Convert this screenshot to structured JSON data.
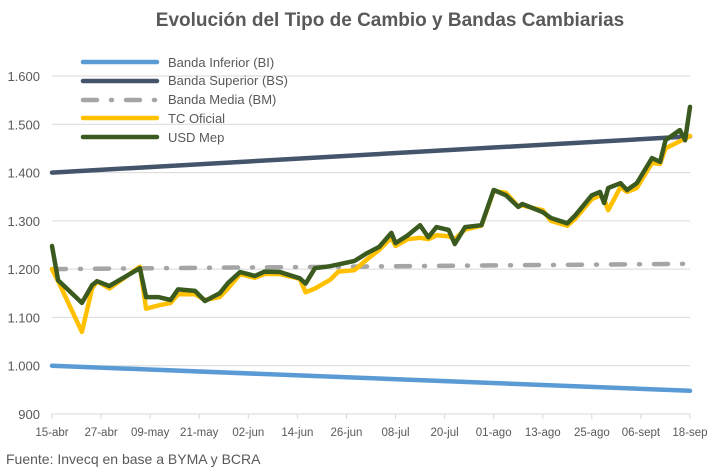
{
  "chart_data": {
    "type": "line",
    "title": "Evolución del Tipo de Cambio y Bandas Cambiarias",
    "xlabel": "",
    "ylabel": "",
    "x_unit": "days since 15-abr",
    "x_ticks": [
      0,
      12,
      24,
      36,
      48,
      60,
      72,
      84,
      96,
      108,
      120,
      132,
      144,
      156
    ],
    "x_tick_labels": [
      "15-abr",
      "27-abr",
      "09-may",
      "21-may",
      "02-jun",
      "14-jun",
      "26-jun",
      "08-jul",
      "20-jul",
      "01-ago",
      "13-ago",
      "25-ago",
      "06-sept",
      "18-sep"
    ],
    "xlim": [
      0,
      156
    ],
    "ylim": [
      900,
      1600
    ],
    "y_ticks": [
      900,
      1000,
      1100,
      1200,
      1300,
      1400,
      1500,
      1600
    ],
    "y_tick_labels": [
      "900",
      "1.000",
      "1.100",
      "1.200",
      "1.300",
      "1.400",
      "1.500",
      "1.600"
    ],
    "grid": true,
    "legend_position": "top-left",
    "series": [
      {
        "name": "Banda Inferior (BI)",
        "color": "#5b9bd5",
        "style": "solid",
        "points": [
          [
            0,
            1000
          ],
          [
            156,
            948
          ]
        ]
      },
      {
        "name": "Banda Superior (BS)",
        "color": "#44546a",
        "style": "solid",
        "points": [
          [
            0,
            1400
          ],
          [
            156,
            1475
          ]
        ]
      },
      {
        "name": "Banda Media (BM)",
        "color": "#a5a5a5",
        "style": "dashdot",
        "points": [
          [
            0,
            1200
          ],
          [
            156,
            1211
          ]
        ]
      },
      {
        "name": "TC Oficial",
        "color": "#ffc000",
        "style": "solid",
        "points": [
          [
            0,
            1200
          ],
          [
            1.5,
            1175
          ],
          [
            7.3,
            1070
          ],
          [
            9.8,
            1160
          ],
          [
            11,
            1175
          ],
          [
            14,
            1160
          ],
          [
            21.5,
            1205
          ],
          [
            23,
            1118
          ],
          [
            26,
            1125
          ],
          [
            29,
            1130
          ],
          [
            30.8,
            1148
          ],
          [
            35,
            1148
          ],
          [
            37.4,
            1136
          ],
          [
            41,
            1142
          ],
          [
            43,
            1160
          ],
          [
            46,
            1190
          ],
          [
            49.6,
            1182
          ],
          [
            52,
            1190
          ],
          [
            55.7,
            1190
          ],
          [
            60.6,
            1180
          ],
          [
            62,
            1152
          ],
          [
            64.3,
            1160
          ],
          [
            68,
            1178
          ],
          [
            70,
            1195
          ],
          [
            74,
            1198
          ],
          [
            77,
            1220
          ],
          [
            80,
            1240
          ],
          [
            83,
            1265
          ],
          [
            84,
            1248
          ],
          [
            87,
            1262
          ],
          [
            90,
            1265
          ],
          [
            92,
            1262
          ],
          [
            94,
            1270
          ],
          [
            97,
            1268
          ],
          [
            98.5,
            1262
          ],
          [
            101,
            1282
          ],
          [
            105,
            1290
          ],
          [
            108,
            1362
          ],
          [
            111,
            1358
          ],
          [
            114,
            1330
          ],
          [
            115,
            1332
          ],
          [
            120,
            1322
          ],
          [
            122,
            1300
          ],
          [
            126,
            1290
          ],
          [
            128,
            1305
          ],
          [
            132,
            1345
          ],
          [
            134,
            1352
          ],
          [
            135,
            1345
          ],
          [
            136,
            1322
          ],
          [
            139,
            1370
          ],
          [
            140.6,
            1360
          ],
          [
            143,
            1368
          ],
          [
            146.7,
            1420
          ],
          [
            148.7,
            1418
          ],
          [
            150,
            1450
          ],
          [
            153.5,
            1465
          ],
          [
            154.8,
            1470
          ],
          [
            156,
            1476
          ]
        ]
      },
      {
        "name": "USD Mep",
        "color": "#3b5a1f",
        "style": "solid",
        "points": [
          [
            0,
            1248
          ],
          [
            1.5,
            1177
          ],
          [
            7.3,
            1130
          ],
          [
            9.8,
            1167
          ],
          [
            11,
            1175
          ],
          [
            14,
            1165
          ],
          [
            21.5,
            1202
          ],
          [
            23,
            1142
          ],
          [
            26,
            1142
          ],
          [
            29,
            1136
          ],
          [
            30.8,
            1158
          ],
          [
            35,
            1155
          ],
          [
            37.4,
            1134
          ],
          [
            41,
            1150
          ],
          [
            43,
            1171
          ],
          [
            46,
            1194
          ],
          [
            49.6,
            1186
          ],
          [
            52,
            1195
          ],
          [
            55.7,
            1194
          ],
          [
            60.6,
            1181
          ],
          [
            62,
            1170
          ],
          [
            64.3,
            1202
          ],
          [
            68,
            1206
          ],
          [
            74,
            1217
          ],
          [
            77,
            1233
          ],
          [
            80,
            1246
          ],
          [
            83,
            1275
          ],
          [
            84,
            1254
          ],
          [
            87,
            1270
          ],
          [
            90,
            1291
          ],
          [
            92,
            1266
          ],
          [
            94,
            1287
          ],
          [
            97,
            1281
          ],
          [
            98.5,
            1252
          ],
          [
            101,
            1287
          ],
          [
            105,
            1291
          ],
          [
            108,
            1364
          ],
          [
            111,
            1353
          ],
          [
            114,
            1329
          ],
          [
            115,
            1335
          ],
          [
            120,
            1318
          ],
          [
            122,
            1306
          ],
          [
            126,
            1295
          ],
          [
            128,
            1312
          ],
          [
            132,
            1353
          ],
          [
            134,
            1360
          ],
          [
            135,
            1337
          ],
          [
            136,
            1368
          ],
          [
            139,
            1378
          ],
          [
            140.6,
            1364
          ],
          [
            143,
            1378
          ],
          [
            146.7,
            1430
          ],
          [
            148.7,
            1422
          ],
          [
            150,
            1467
          ],
          [
            153.5,
            1488
          ],
          [
            154.8,
            1467
          ],
          [
            156,
            1536
          ]
        ]
      }
    ]
  },
  "footer": {
    "source": "Fuente: Invecq en base a BYMA y BCRA"
  }
}
